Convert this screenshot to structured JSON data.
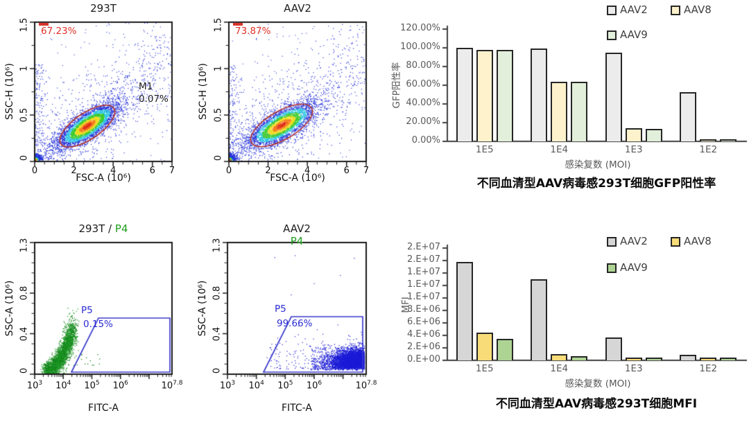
{
  "figure": {
    "background": "#ffffff",
    "accent_colors": {
      "gate_red": "#e03127",
      "gate_blue": "#2a2ad2",
      "p4_green": "#1fa01f",
      "dot_blue": "#2633d8",
      "dot_green": "#15801c"
    }
  },
  "flow_plots": [
    {
      "title": "293T",
      "gate_percent": "67.23%",
      "marker_label": "M1",
      "marker_percent": "0.07%",
      "xlabel": "FSC-A (10⁶)",
      "ylabel": "SSC-H (10⁶)",
      "x_axis": {
        "min": 0,
        "max": 7,
        "tick_values": [
          0,
          2,
          4,
          6,
          7
        ],
        "labels": [
          "0",
          "2",
          "4",
          "6",
          "7"
        ],
        "minor_step": 0.5,
        "log": false
      },
      "y_axis": {
        "min": 0,
        "max": 1.5,
        "tick_values": [
          0,
          0.5,
          1,
          1.5
        ],
        "labels": [
          "0",
          "0.5",
          "1",
          "1.5"
        ],
        "minor_step": 0.25
      }
    },
    {
      "title": "AAV2",
      "gate_percent": "73.87%",
      "xlabel": "FSC-A (10⁶)",
      "ylabel": "SSC-H (10⁶)",
      "x_axis": {
        "min": 0,
        "max": 7,
        "tick_values": [
          0,
          2,
          4,
          6,
          7
        ],
        "labels": [
          "0",
          "2",
          "4",
          "6",
          "7"
        ],
        "minor_step": 0.5,
        "log": false
      },
      "y_axis": {
        "min": 0,
        "max": 1.5,
        "tick_values": [
          0,
          0.5,
          1,
          1.5
        ],
        "labels": [
          "0",
          "0.5",
          "1",
          "1.5"
        ],
        "minor_step": 0.25
      }
    },
    {
      "title": "293T /",
      "title_gate": "P4",
      "gate_label": "P5",
      "gate_percent": "0.15%",
      "xlabel": "FITC-A",
      "ylabel": "SSC-A (10⁶)",
      "x_axis": {
        "min": 3,
        "max": 7.8,
        "tick_values": [
          3,
          4,
          5,
          6,
          7
        ],
        "label_values": [
          3,
          4,
          5,
          6,
          7.8
        ],
        "exponents": [
          "3",
          "4",
          "5",
          "6",
          "7.8"
        ],
        "log": true
      },
      "y_axis": {
        "min": 0,
        "max": 1.3,
        "tick_values": [
          0,
          0.4,
          0.8,
          1.3
        ],
        "labels": [
          "0",
          "0.4",
          "0.8",
          "1.3"
        ],
        "minor_step": 0.1
      }
    },
    {
      "title": "AAV2",
      "subtitle_gate": "P4",
      "gate_label": "P5",
      "gate_percent": "99.66%",
      "xlabel": "FITC-A",
      "ylabel": "SSC-A (10⁶)",
      "x_axis": {
        "min": 3,
        "max": 7.8,
        "tick_values": [
          3,
          4,
          5,
          6,
          7
        ],
        "label_values": [
          3,
          4,
          5,
          6,
          7.8
        ],
        "exponents": [
          "3",
          "4",
          "5",
          "6",
          "7.8"
        ],
        "log": true
      },
      "y_axis": {
        "min": 0,
        "max": 1.3,
        "tick_values": [
          0,
          0.4,
          0.8,
          1.3
        ],
        "labels": [
          "0",
          "0.4",
          "0.8",
          "1.3"
        ],
        "minor_step": 0.1
      }
    }
  ],
  "chart_data": [
    {
      "type": "bar",
      "title": "不同血清型AAV病毒感293T细胞GFP阳性率",
      "xlabel": "感染复数 (MOI)",
      "ylabel": "GFP阳性率",
      "categories": [
        "1E5",
        "1E4",
        "1E3",
        "1E2"
      ],
      "series": [
        {
          "name": "AAV2",
          "color": "#ececec",
          "values": [
            100,
            99.5,
            94.5,
            52.5
          ]
        },
        {
          "name": "AAV8",
          "color": "#fdf2cc",
          "values": [
            98,
            64,
            14,
            1.5
          ]
        },
        {
          "name": "AAV9",
          "color": "#e2efda",
          "values": [
            97.5,
            64,
            13,
            1.5
          ]
        }
      ],
      "ylim": [
        0,
        120
      ],
      "y_ticks": {
        "values": [
          0,
          20,
          40,
          60,
          80,
          100,
          120
        ],
        "labels": [
          "0.00%",
          "20.00%",
          "40.00%",
          "60.00%",
          "80.00%",
          "100.00%",
          "120.00%"
        ]
      },
      "grid": false,
      "legend_position": "top-right",
      "bar_border": "#262626"
    },
    {
      "type": "bar",
      "title": "不同血清型AAV病毒感293T细胞MFI",
      "xlabel": "感染复数 (MOI)",
      "ylabel": "MFI",
      "categories": [
        "1E5",
        "1E4",
        "1E3",
        "1E2"
      ],
      "series": [
        {
          "name": "AAV2",
          "color": "#d6d6d6",
          "values": [
            15800000,
            13000000,
            3700000,
            900000
          ]
        },
        {
          "name": "AAV8",
          "color": "#f8dc78",
          "values": [
            4400000,
            1000000,
            500000,
            450000
          ]
        },
        {
          "name": "AAV9",
          "color": "#aed494",
          "values": [
            3500000,
            650000,
            450000,
            400000
          ]
        }
      ],
      "ylim": [
        0,
        18000000
      ],
      "y_ticks": {
        "values": [
          0,
          2000000,
          4000000,
          6000000,
          8000000,
          10000000,
          12000000,
          14000000,
          16000000,
          18000000
        ],
        "labels": [
          "0.E+00",
          "2.E+06",
          "4.E+06",
          "6.E+06",
          "8.E+06",
          "1.E+07",
          "1.E+07",
          "1.E+07",
          "2.E+07",
          "2.E+07"
        ]
      },
      "grid": false,
      "legend_position": "top-right",
      "bar_border": "#262626"
    }
  ]
}
